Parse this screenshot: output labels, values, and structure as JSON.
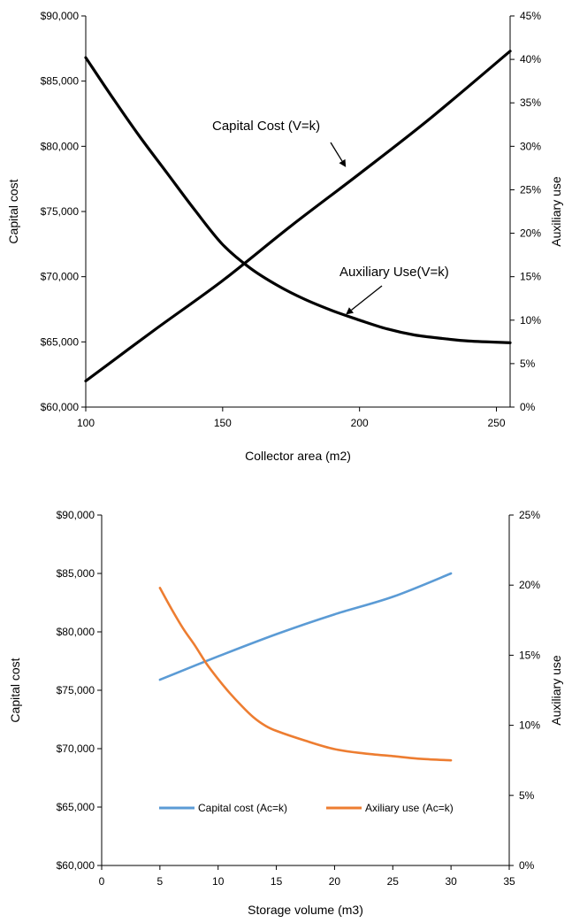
{
  "chart_data": [
    {
      "type": "line",
      "title": "",
      "xlabel": "Collector area (m2)",
      "ylabel": "Capital cost",
      "y2label": "Auxiliary use",
      "xlim": [
        100,
        255
      ],
      "ylim": [
        60000,
        90000
      ],
      "y2lim": [
        0,
        45
      ],
      "x_ticks": [
        "100",
        "150",
        "200",
        "250"
      ],
      "y_ticks": [
        "$60,000",
        "$65,000",
        "$70,000",
        "$75,000",
        "$80,000",
        "$85,000",
        "$90,000"
      ],
      "y2_ticks": [
        "0%",
        "5%",
        "10%",
        "15%",
        "20%",
        "25%",
        "30%",
        "35%",
        "40%",
        "45%"
      ],
      "grid": false,
      "annotations": [
        {
          "text": "Capital Cost (V=k)",
          "arrow_to": [
            195,
            78400
          ]
        },
        {
          "text": "Auxiliary  Use(V=k)",
          "arrow_to": [
            195,
            67100
          ]
        }
      ],
      "series": [
        {
          "color": "#000000",
          "axis": "left",
          "x": [
            100,
            125,
            150,
            175,
            200,
            225,
            255
          ],
          "values": [
            62000,
            65900,
            69700,
            73900,
            77900,
            82000,
            87300
          ]
        },
        {
          "color": "#000000",
          "axis": "right",
          "x": [
            100,
            110,
            120,
            130,
            140,
            150,
            160,
            170,
            180,
            190,
            200,
            210,
            220,
            230,
            240,
            255
          ],
          "values": [
            40.2,
            35.5,
            31.0,
            26.8,
            22.6,
            18.7,
            16.0,
            14.0,
            12.4,
            11.1,
            10.0,
            9.0,
            8.3,
            7.9,
            7.6,
            7.4
          ]
        }
      ]
    },
    {
      "type": "line",
      "title": "",
      "xlabel": "Storage volume (m3)",
      "ylabel": "Capital cost",
      "y2label": "Auxiliary use",
      "xlim": [
        0,
        35
      ],
      "ylim": [
        60000,
        90000
      ],
      "y2lim": [
        0,
        25
      ],
      "x_ticks": [
        "0",
        "5",
        "10",
        "15",
        "20",
        "25",
        "30",
        "35"
      ],
      "y_ticks": [
        "$60,000",
        "$65,000",
        "$70,000",
        "$75,000",
        "$80,000",
        "$85,000",
        "$90,000"
      ],
      "y2_ticks": [
        "0%",
        "5%",
        "10%",
        "15%",
        "20%",
        "25%"
      ],
      "grid": false,
      "legend": "bottom-center",
      "series": [
        {
          "name": "Capital cost (Ac=k)",
          "color": "#5B9BD5",
          "axis": "left",
          "x": [
            5,
            10,
            15,
            20,
            25,
            30
          ],
          "values": [
            75900,
            77900,
            79800,
            81500,
            83000,
            85000
          ]
        },
        {
          "name": "Axiliary use (Ac=k)",
          "color": "#ED7D31",
          "axis": "right",
          "x": [
            5,
            6,
            7,
            8,
            9,
            10,
            11,
            12,
            13,
            14,
            15,
            17.5,
            20,
            22.5,
            25,
            27.5,
            30
          ],
          "values": [
            19.8,
            18.3,
            16.9,
            15.7,
            14.4,
            13.3,
            12.3,
            11.4,
            10.6,
            10.0,
            9.6,
            8.9,
            8.3,
            8.0,
            7.8,
            7.6,
            7.5
          ]
        }
      ]
    }
  ]
}
